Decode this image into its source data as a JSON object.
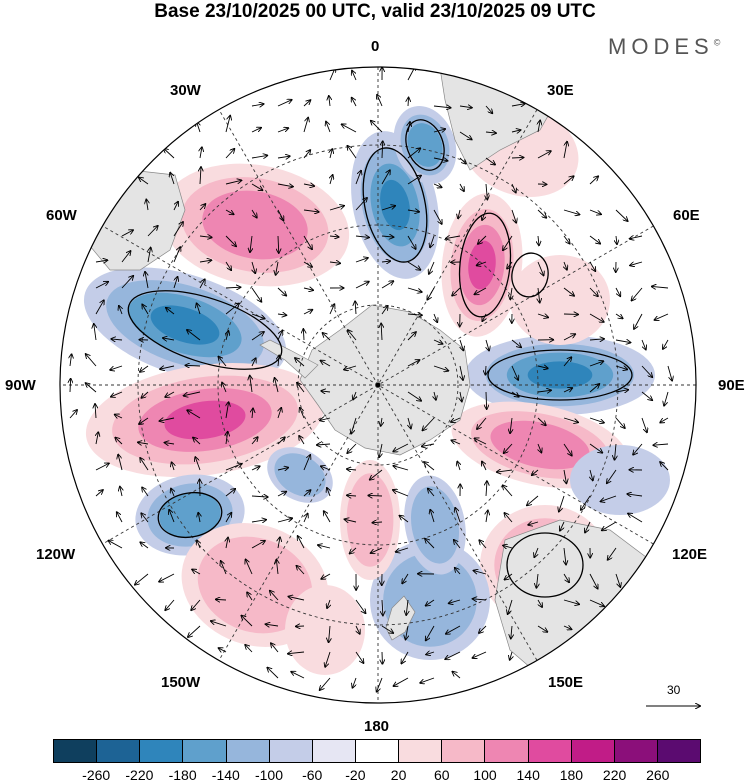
{
  "title": "Base 23/10/2025 00 UTC, valid 23/10/2025 09 UTC",
  "brand": "MODES",
  "brand_mark": "©",
  "lon_labels": {
    "top": "0",
    "e30": "30E",
    "e60": "60E",
    "e90": "90E",
    "e120": "120E",
    "e150": "150E",
    "bottom": "180",
    "w150": "150W",
    "w120": "120W",
    "w90": "90W",
    "w60": "60W",
    "w30": "30W"
  },
  "reference_vector": "30",
  "colorbar": {
    "colors": [
      "#0f3f5e",
      "#1d6395",
      "#2f85bb",
      "#5fa0cc",
      "#96b6dc",
      "#c4cde8",
      "#e6e6f3",
      "#ffffff",
      "#f9dcdf",
      "#f6b9c8",
      "#ee86b2",
      "#e04b9f",
      "#c11c87",
      "#8b0f7a",
      "#5b0b70"
    ],
    "ticks": [
      "-260",
      "-220",
      "-180",
      "-140",
      "-100",
      "-60",
      "-20",
      "20",
      "60",
      "100",
      "140",
      "180",
      "220",
      "260"
    ]
  },
  "anomaly_colors": {
    "strong_neg": "#2f85bb",
    "mid_neg": "#5fa0cc",
    "weak_neg": "#96b6dc",
    "faint_neg": "#c4cde8",
    "faint_pos": "#f9dcdf",
    "weak_pos": "#f6b9c8",
    "mid_pos": "#ee86b2",
    "strong_pos": "#e04b9f"
  }
}
